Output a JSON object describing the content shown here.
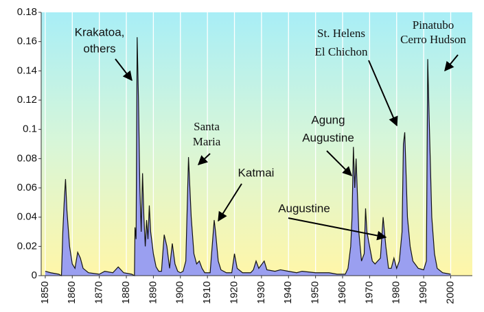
{
  "chart_data": {
    "type": "area",
    "x": [
      1850,
      1852,
      1855,
      1856,
      1856.5,
      1857,
      1857.5,
      1858,
      1859,
      1860,
      1861,
      1862,
      1863,
      1864,
      1866,
      1870,
      1872,
      1875,
      1877,
      1879,
      1882,
      1883,
      1883.2,
      1883.6,
      1884,
      1884.5,
      1885,
      1885.5,
      1886,
      1886.5,
      1887,
      1887.5,
      1888,
      1888.5,
      1889,
      1890,
      1891,
      1892,
      1893,
      1894,
      1895,
      1896,
      1897,
      1898,
      1899,
      1900,
      1901,
      1902,
      1903,
      1904,
      1905,
      1906,
      1907,
      1908,
      1909,
      1911,
      1912.5,
      1913,
      1914,
      1915,
      1917,
      1919,
      1920,
      1921,
      1923,
      1926,
      1927,
      1928,
      1929,
      1931,
      1932,
      1935,
      1937,
      1940,
      1943,
      1945,
      1950,
      1955,
      1958,
      1961,
      1962,
      1963,
      1963.5,
      1964,
      1964.5,
      1965,
      1966,
      1967,
      1968,
      1968.5,
      1969,
      1970,
      1971,
      1972,
      1974,
      1975,
      1976,
      1977,
      1978,
      1979,
      1980,
      1981,
      1982,
      1982.5,
      1983,
      1984,
      1985,
      1986,
      1988,
      1990,
      1991,
      1991.5,
      1992,
      1993,
      1994,
      1995,
      1997,
      2000
    ],
    "values": [
      0.003,
      0.002,
      0.001,
      0.0,
      0.03,
      0.05,
      0.066,
      0.045,
      0.02,
      0.008,
      0.005,
      0.016,
      0.012,
      0.005,
      0.002,
      0.001,
      0.003,
      0.002,
      0.006,
      0.002,
      0.001,
      0.0,
      0.033,
      0.025,
      0.163,
      0.12,
      0.06,
      0.03,
      0.07,
      0.04,
      0.02,
      0.038,
      0.025,
      0.048,
      0.03,
      0.015,
      0.006,
      0.003,
      0.003,
      0.028,
      0.02,
      0.005,
      0.022,
      0.008,
      0.003,
      0.002,
      0.003,
      0.01,
      0.081,
      0.04,
      0.015,
      0.008,
      0.01,
      0.005,
      0.002,
      0.002,
      0.038,
      0.03,
      0.01,
      0.004,
      0.002,
      0.002,
      0.015,
      0.005,
      0.002,
      0.002,
      0.004,
      0.01,
      0.005,
      0.01,
      0.004,
      0.003,
      0.004,
      0.003,
      0.002,
      0.003,
      0.002,
      0.002,
      0.001,
      0.001,
      0.005,
      0.02,
      0.04,
      0.088,
      0.06,
      0.08,
      0.03,
      0.01,
      0.015,
      0.046,
      0.03,
      0.02,
      0.01,
      0.008,
      0.012,
      0.04,
      0.02,
      0.005,
      0.005,
      0.012,
      0.005,
      0.01,
      0.03,
      0.09,
      0.098,
      0.04,
      0.02,
      0.01,
      0.005,
      0.004,
      0.01,
      0.148,
      0.11,
      0.04,
      0.015,
      0.005,
      0.002,
      0.001
    ],
    "color": "#9a9ff0",
    "xlim": [
      1848.5,
      2008
    ],
    "xticks": [
      1850,
      1860,
      1870,
      1880,
      1890,
      1900,
      1910,
      1920,
      1930,
      1940,
      1950,
      1960,
      1970,
      1980,
      1990,
      2000
    ],
    "ylim": [
      0,
      0.18
    ],
    "yticks": [
      0,
      0.02,
      0.04,
      0.06,
      0.08,
      0.1,
      0.12,
      0.14,
      0.16,
      0.18
    ],
    "grid": "x",
    "annotations": [
      {
        "lines": [
          "Krakatoa,",
          "others"
        ]
      },
      {
        "lines": [
          "Santa",
          "Maria"
        ]
      },
      {
        "lines": [
          "Katmai"
        ]
      },
      {
        "lines": [
          "Agung",
          "Augustine"
        ]
      },
      {
        "lines": [
          "Augustine"
        ]
      },
      {
        "lines": [
          "St. Helens",
          "El Chichon"
        ]
      },
      {
        "lines": [
          "Pinatubo",
          "Cerro Hudson"
        ]
      }
    ]
  }
}
